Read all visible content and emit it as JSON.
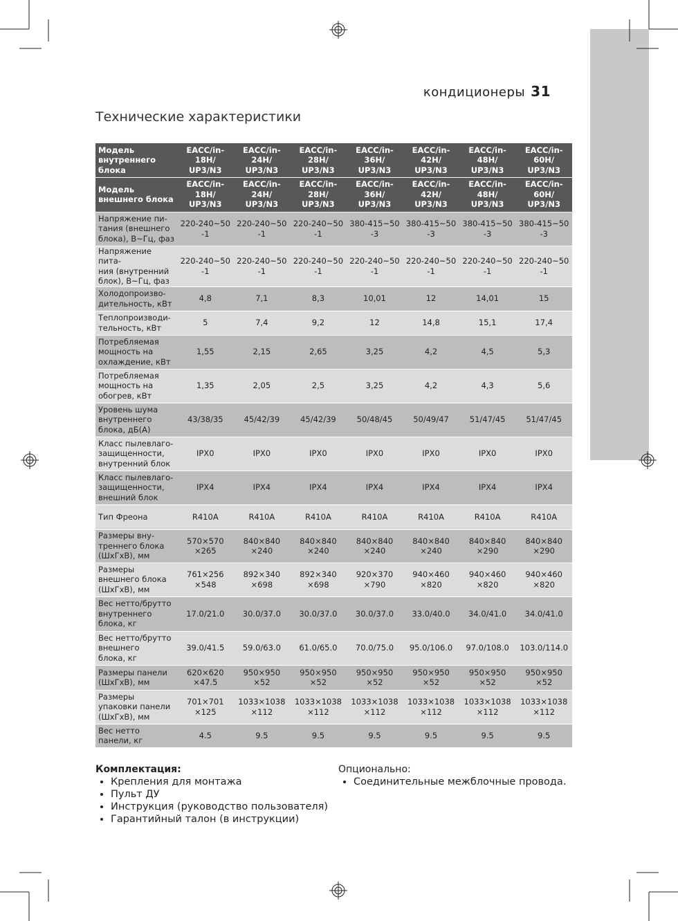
{
  "header": {
    "section": "кондиционеры",
    "page_number": "31"
  },
  "title": "Технические характеристики",
  "table": {
    "header_rows": [
      [
        "Модель\nвнутреннего блока",
        "EACC/in-18H/\nUP3/N3",
        "EACC/in-24H/\nUP3/N3",
        "EACC/in-28H/\nUP3/N3",
        "EACC/in-36H/\nUP3/N3",
        "EACC/in-42H/\nUP3/N3",
        "EACC/in-\n48H/\nUP3/N3",
        "EACC/in-\n60H/\nUP3/N3"
      ],
      [
        "Модель\nвнешнего блока",
        "EACC/in-18H/\nUP3/N3",
        "EACC/in-24H/\nUP3/N3",
        "EACC/in-28H/\nUP3/N3",
        "EACC/in-36H/\nUP3/N3",
        "EACC/in-42H/\nUP3/N3",
        "EACC/in-\n48H/\nUP3/N3",
        "EACC/in-\n60H/\nUP3/N3"
      ]
    ],
    "rows": [
      [
        "Напряжение пи-\nтания (внешнего\nблока), В~Гц, фаз",
        "220-240~50\n-1",
        "220-240~50\n-1",
        "220-240~50\n-1",
        "380-415~50\n-3",
        "380-415~50\n-3",
        "380-415~50\n-3",
        "380-415~50\n-3"
      ],
      [
        "Напряжение пита-\nния (внутренний\nблок), В~Гц, фаз",
        "220-240~50\n-1",
        "220-240~50\n-1",
        "220-240~50\n-1",
        "220-240~50\n-1",
        "220-240~50\n-1",
        "220-240~50\n-1",
        "220-240~50\n-1"
      ],
      [
        "Холодопроизво-\nдительность, кВт",
        "4,8",
        "7,1",
        "8,3",
        "10,01",
        "12",
        "14,01",
        "15"
      ],
      [
        "Теплопроизводи-\nтельность, кВт",
        "5",
        "7,4",
        "9,2",
        "12",
        "14,8",
        "15,1",
        "17,4"
      ],
      [
        "Потребляемая\nмощность на\nохлаждение, кВт",
        "1,55",
        "2,15",
        "2,65",
        "3,25",
        "4,2",
        "4,5",
        "5,3"
      ],
      [
        "Потребляемая\nмощность на\nобогрев, кВт",
        "1,35",
        "2,05",
        "2,5",
        "3,25",
        "4,2",
        "4,3",
        "5,6"
      ],
      [
        "Уровень шума\nвнутреннего\nблока, дБ(А)",
        "43/38/35",
        "45/42/39",
        "45/42/39",
        "50/48/45",
        "50/49/47",
        "51/47/45",
        "51/47/45"
      ],
      [
        "Класс пылевлаго-\nзащищенности,\nвнутренний блок",
        "IPX0",
        "IPX0",
        "IPX0",
        "IPX0",
        "IPX0",
        "IPX0",
        "IPX0"
      ],
      [
        "Класс пылевлаго-\nзащищенности,\nвнешний блок",
        "IPX4",
        "IPX4",
        "IPX4",
        "IPX4",
        "IPX4",
        "IPX4",
        "IPX4"
      ],
      [
        "Тип Фреона",
        "R410A",
        "R410A",
        "R410A",
        "R410A",
        "R410A",
        "R410A",
        "R410A"
      ],
      [
        "Размеры вну-\nтреннего блока\n(ШхГхВ), мм",
        "570×570\n×265",
        "840×840\n×240",
        "840×840\n×240",
        "840×840\n×240",
        "840×840\n×240",
        "840×840\n×290",
        "840×840\n×290"
      ],
      [
        "Размеры\nвнешнего блока\n(ШхГхВ), мм",
        "761×256\n×548",
        "892×340\n×698",
        "892×340\n×698",
        "920×370\n×790",
        "940×460\n×820",
        "940×460\n×820",
        "940×460\n×820"
      ],
      [
        "Вес нетто/брутто\nвнутреннего\nблока, кг",
        "17.0/21.0",
        "30.0/37.0",
        "30.0/37.0",
        "30.0/37.0",
        "33.0/40.0",
        "34.0/41.0",
        "34.0/41.0"
      ],
      [
        "Вес нетто/брутто\nвнешнего\nблока, кг",
        "39.0/41.5",
        "59.0/63.0",
        "61.0/65.0",
        "70.0/75.0",
        "95.0/106.0",
        "97.0/108.0",
        "103.0/114.0"
      ],
      [
        "Размеры панели\n(ШхГхВ), мм",
        "620×620\n×47.5",
        "950×950\n×52",
        "950×950\n×52",
        "950×950\n×52",
        "950×950\n×52",
        "950×950\n×52",
        "950×950\n×52"
      ],
      [
        "Размеры\nупаковки панели\n(ШхГхВ), мм",
        "701×701\n×125",
        "1033×1038\n×112",
        "1033×1038\n×112",
        "1033×1038\n×112",
        "1033×1038\n×112",
        "1033×1038\n×112",
        "1033×1038\n×112"
      ],
      [
        "Вес нетто\nпанели, кг",
        "4.5",
        "9.5",
        "9.5",
        "9.5",
        "9.5",
        "9.5",
        "9.5"
      ]
    ]
  },
  "package": {
    "title": "Комплектация:",
    "items": [
      "Крепления для монтажа",
      "Пульт ДУ",
      "Инструкция (руководство пользователя)",
      "Гарантийный талон (в инструкции)"
    ]
  },
  "optional": {
    "title": "Опционально:",
    "items": [
      "Соединительные межблочные провода."
    ]
  }
}
